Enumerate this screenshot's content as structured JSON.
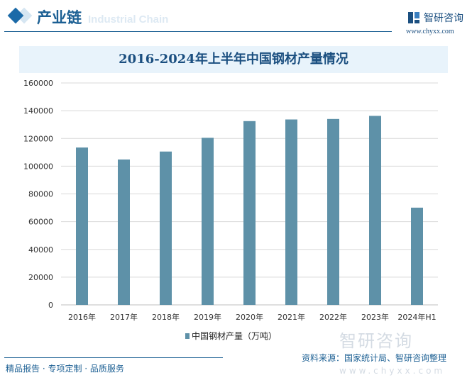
{
  "header": {
    "title": "产业链",
    "subtitle": "Industrial Chain",
    "brand": "智研咨询",
    "brand_url": "www.chyxx.com"
  },
  "chart_data": {
    "type": "bar",
    "title": "2016-2024年上半年中国钢材产量情况",
    "categories": [
      "2016年",
      "2017年",
      "2018年",
      "2019年",
      "2020年",
      "2021年",
      "2022年",
      "2023年",
      "2024年H1"
    ],
    "series": [
      {
        "name": "中国钢材产量（万吨）",
        "color": "#5e91a8",
        "values": [
          113460,
          104820,
          110550,
          120460,
          132490,
          133670,
          134030,
          136270,
          70100
        ]
      }
    ],
    "ylim": [
      0,
      160000
    ],
    "yticks": [
      0,
      20000,
      40000,
      60000,
      80000,
      100000,
      120000,
      140000,
      160000
    ],
    "grid": true,
    "legend": "bottom"
  },
  "footer": {
    "left": "精品报告 · 专项定制 · 品质服务",
    "source": "资料来源：国家统计局、智研咨询整理",
    "watermark": "智研咨询",
    "watermark_url": "www.chyxx.com"
  }
}
